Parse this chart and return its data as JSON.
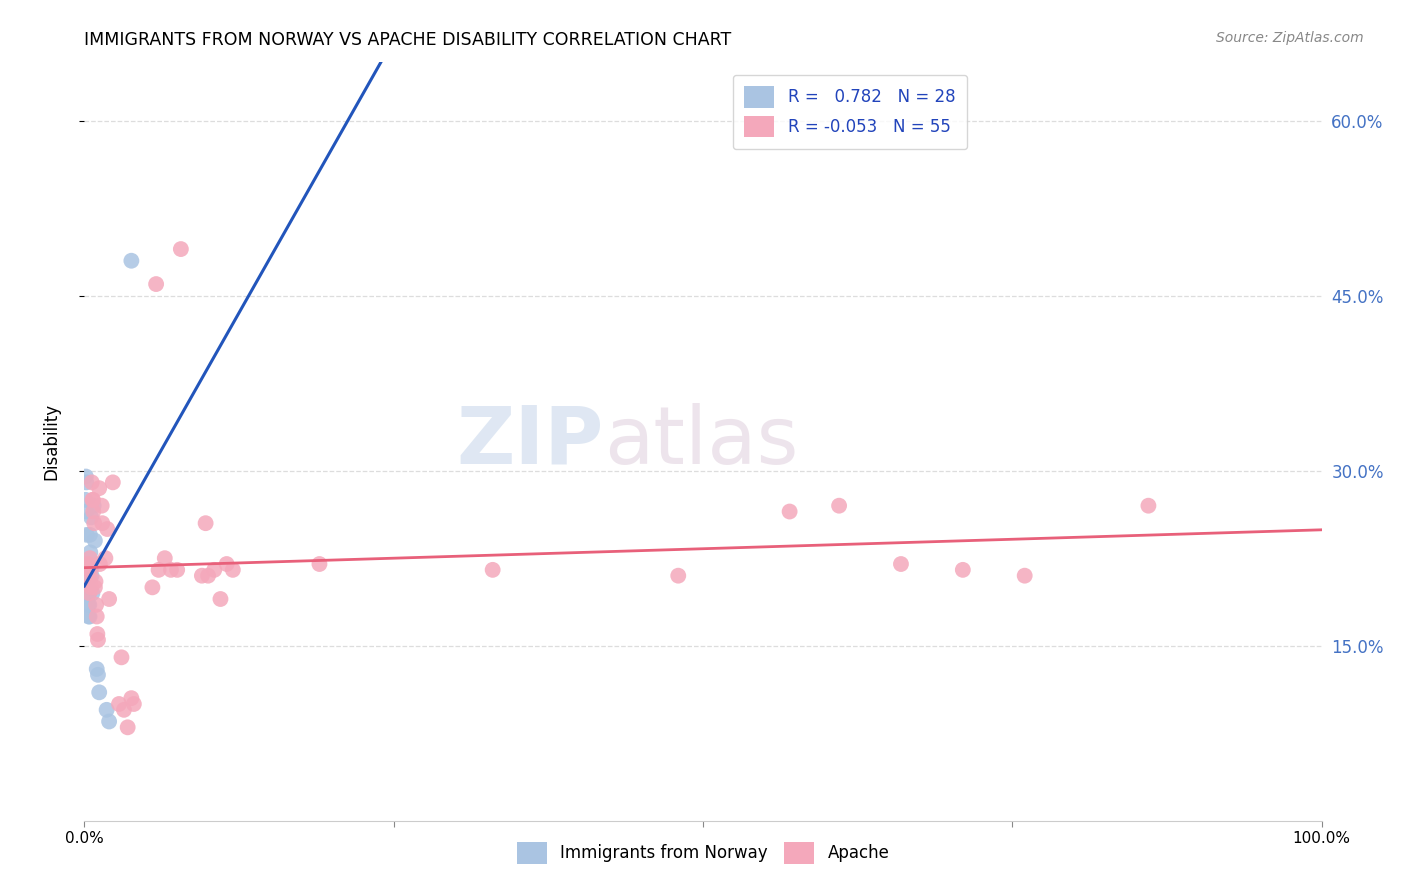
{
  "title": "IMMIGRANTS FROM NORWAY VS APACHE DISABILITY CORRELATION CHART",
  "source": "Source: ZipAtlas.com",
  "ylabel": "Disability",
  "norway_R": 0.782,
  "norway_N": 28,
  "apache_R": -0.053,
  "apache_N": 55,
  "norway_color": "#aac4e2",
  "apache_color": "#f4a8bb",
  "norway_line_color": "#2255bb",
  "apache_line_color": "#e8607a",
  "legend_label1": "Immigrants from Norway",
  "legend_label2": "Apache",
  "watermark_zip": "ZIP",
  "watermark_atlas": "atlas",
  "background_color": "#ffffff",
  "grid_color": "#dddddd",
  "ylim": [
    0.0,
    65.0
  ],
  "xlim": [
    0.0,
    100.0
  ],
  "norway_points": [
    [
      0.1,
      27.5
    ],
    [
      0.12,
      29.5
    ],
    [
      0.15,
      29.0
    ],
    [
      0.18,
      26.5
    ],
    [
      0.2,
      24.5
    ],
    [
      0.22,
      22.0
    ],
    [
      0.25,
      20.0
    ],
    [
      0.28,
      20.5
    ],
    [
      0.3,
      19.5
    ],
    [
      0.32,
      18.5
    ],
    [
      0.35,
      17.5
    ],
    [
      0.38,
      19.5
    ],
    [
      0.4,
      18.5
    ],
    [
      0.42,
      17.5
    ],
    [
      0.45,
      24.5
    ],
    [
      0.48,
      23.0
    ],
    [
      0.5,
      21.5
    ],
    [
      0.55,
      26.0
    ],
    [
      0.58,
      21.0
    ],
    [
      0.65,
      19.5
    ],
    [
      0.75,
      27.0
    ],
    [
      0.85,
      24.0
    ],
    [
      1.0,
      13.0
    ],
    [
      1.1,
      12.5
    ],
    [
      1.2,
      11.0
    ],
    [
      1.8,
      9.5
    ],
    [
      2.0,
      8.5
    ],
    [
      3.8,
      48.0
    ]
  ],
  "apache_points": [
    [
      0.3,
      22.0
    ],
    [
      0.35,
      21.5
    ],
    [
      0.4,
      19.5
    ],
    [
      0.45,
      22.5
    ],
    [
      0.48,
      20.5
    ],
    [
      0.52,
      21.5
    ],
    [
      0.55,
      20.0
    ],
    [
      0.6,
      29.0
    ],
    [
      0.65,
      27.5
    ],
    [
      0.7,
      27.5
    ],
    [
      0.72,
      26.5
    ],
    [
      0.8,
      25.5
    ],
    [
      0.85,
      20.0
    ],
    [
      0.9,
      20.5
    ],
    [
      0.95,
      18.5
    ],
    [
      1.0,
      17.5
    ],
    [
      1.05,
      16.0
    ],
    [
      1.1,
      15.5
    ],
    [
      1.2,
      28.5
    ],
    [
      1.25,
      22.0
    ],
    [
      1.4,
      27.0
    ],
    [
      1.45,
      25.5
    ],
    [
      1.7,
      22.5
    ],
    [
      1.85,
      25.0
    ],
    [
      2.0,
      19.0
    ],
    [
      2.3,
      29.0
    ],
    [
      2.8,
      10.0
    ],
    [
      3.0,
      14.0
    ],
    [
      3.2,
      9.5
    ],
    [
      3.5,
      8.0
    ],
    [
      3.8,
      10.5
    ],
    [
      4.0,
      10.0
    ],
    [
      5.5,
      20.0
    ],
    [
      6.0,
      21.5
    ],
    [
      6.5,
      22.5
    ],
    [
      7.0,
      21.5
    ],
    [
      7.5,
      21.5
    ],
    [
      9.5,
      21.0
    ],
    [
      9.8,
      25.5
    ],
    [
      10.0,
      21.0
    ],
    [
      10.5,
      21.5
    ],
    [
      11.0,
      19.0
    ],
    [
      11.5,
      22.0
    ],
    [
      12.0,
      21.5
    ],
    [
      5.8,
      46.0
    ],
    [
      7.8,
      49.0
    ],
    [
      19.0,
      22.0
    ],
    [
      33.0,
      21.5
    ],
    [
      48.0,
      21.0
    ],
    [
      57.0,
      26.5
    ],
    [
      61.0,
      27.0
    ],
    [
      66.0,
      22.0
    ],
    [
      71.0,
      21.5
    ],
    [
      76.0,
      21.0
    ],
    [
      86.0,
      27.0
    ]
  ]
}
